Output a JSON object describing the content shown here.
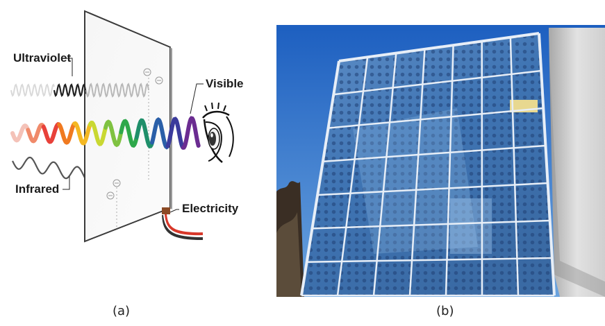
{
  "panel_a": {
    "labels": {
      "ultraviolet": "Ultraviolet",
      "visible": "Visible",
      "infrared": "Infrared",
      "electricity": "Electricity"
    },
    "colors": {
      "uv_wave": "#222222",
      "ir_wave": "#555555",
      "cable_red": "#d8382a",
      "cable_black": "#333333",
      "connector": "#8b4a25"
    },
    "spectrum": [
      "#f4c2b8",
      "#f08a6a",
      "#e8413a",
      "#f07a20",
      "#f4b822",
      "#c9d832",
      "#7fc241",
      "#2ea84a",
      "#1f8f6a",
      "#2a5fa8",
      "#3b3b9c",
      "#6b2c91"
    ]
  },
  "panel_b": {
    "colors": {
      "sky_top": "#1d5fc0",
      "sky_bottom": "#6aa3de",
      "glass": "#3a6fb0",
      "frame": "#e7eef7",
      "wall": "#d9d9d9"
    }
  },
  "captions": {
    "a": "(a)",
    "b": "(b)"
  }
}
